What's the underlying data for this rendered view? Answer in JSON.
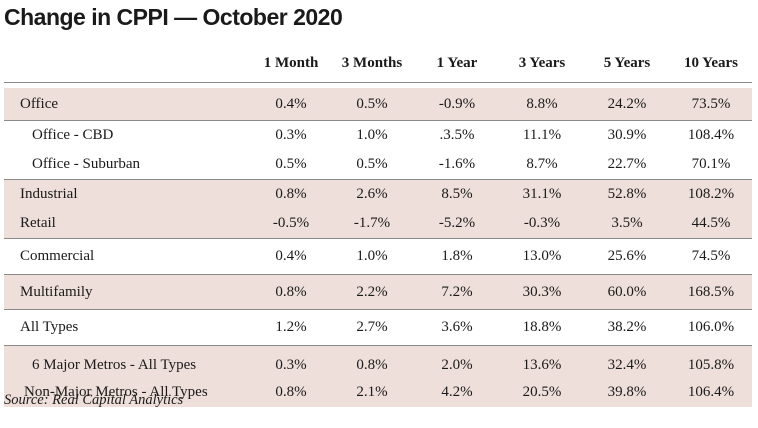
{
  "title": "Change in CPPI — October 2020",
  "source": "Source: Real Capital Analytics",
  "colors": {
    "shade": "#eedfda",
    "rule": "#8a8a8a",
    "text": "#1a1a1a"
  },
  "chart_data": {
    "type": "table",
    "title": "Change in CPPI — October 2020",
    "columns": [
      "1 Month",
      "3 Months",
      "1 Year",
      "3 Years",
      "5 Years",
      "10 Years"
    ],
    "rows": [
      {
        "label": "Office",
        "values": [
          "0.4%",
          "0.5%",
          "-0.9%",
          "8.8%",
          "24.2%",
          "73.5%"
        ]
      },
      {
        "label": "Office - CBD",
        "values": [
          "0.3%",
          "1.0%",
          ".3.5%",
          "11.1%",
          "30.9%",
          "108.4%"
        ]
      },
      {
        "label": "Office - Suburban",
        "values": [
          "0.5%",
          "0.5%",
          "-1.6%",
          "8.7%",
          "22.7%",
          "70.1%"
        ]
      },
      {
        "label": "Industrial",
        "values": [
          "0.8%",
          "2.6%",
          "8.5%",
          "31.1%",
          "52.8%",
          "108.2%"
        ]
      },
      {
        "label": "Retail",
        "values": [
          "-0.5%",
          "-1.7%",
          "-5.2%",
          "-0.3%",
          "3.5%",
          "44.5%"
        ]
      },
      {
        "label": "Commercial",
        "values": [
          "0.4%",
          "1.0%",
          "1.8%",
          "13.0%",
          "25.6%",
          "74.5%"
        ]
      },
      {
        "label": "Multifamily",
        "values": [
          "0.8%",
          "2.2%",
          "7.2%",
          "30.3%",
          "60.0%",
          "168.5%"
        ]
      },
      {
        "label": "All Types",
        "values": [
          "1.2%",
          "2.7%",
          "3.6%",
          "18.8%",
          "38.2%",
          "106.0%"
        ]
      },
      {
        "label": "6 Major Metros - All Types",
        "values": [
          "0.3%",
          "0.8%",
          "2.0%",
          "13.6%",
          "32.4%",
          "105.8%"
        ]
      },
      {
        "label": "Non-Major Metros - All Types",
        "values": [
          "0.8%",
          "2.1%",
          "4.2%",
          "20.5%",
          "39.8%",
          "106.4%"
        ]
      }
    ]
  }
}
